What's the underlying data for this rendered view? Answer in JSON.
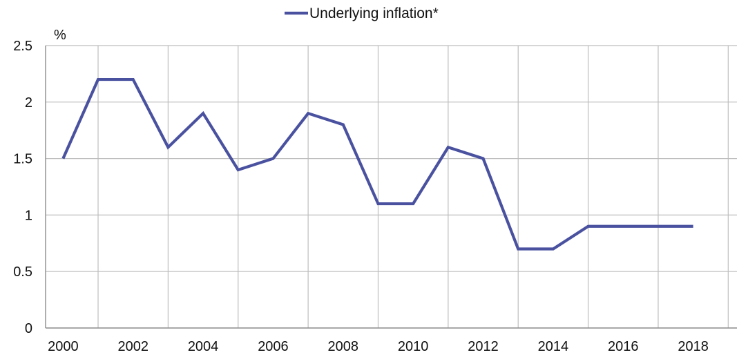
{
  "chart_data": {
    "type": "line",
    "unit_label": "%",
    "x": [
      2000,
      2001,
      2002,
      2003,
      2004,
      2005,
      2006,
      2007,
      2008,
      2009,
      2010,
      2011,
      2012,
      2013,
      2014,
      2015,
      2016,
      2017,
      2018
    ],
    "series": [
      {
        "name": "Underlying inflation*",
        "color": "#4a52a0",
        "values": [
          1.5,
          2.2,
          2.2,
          1.6,
          1.9,
          1.4,
          1.5,
          1.9,
          1.8,
          1.1,
          1.1,
          1.6,
          1.5,
          0.7,
          0.7,
          0.9,
          0.9,
          0.9,
          0.9
        ]
      }
    ],
    "x_ticks": [
      "2000",
      "2002",
      "2004",
      "2006",
      "2008",
      "2010",
      "2012",
      "2014",
      "2016",
      "2018"
    ],
    "y_ticks": [
      "0",
      "0.5",
      "1",
      "1.5",
      "2",
      "2.5"
    ],
    "ylim": [
      0,
      2.5
    ],
    "grid": true,
    "legend_position": "top-center"
  }
}
